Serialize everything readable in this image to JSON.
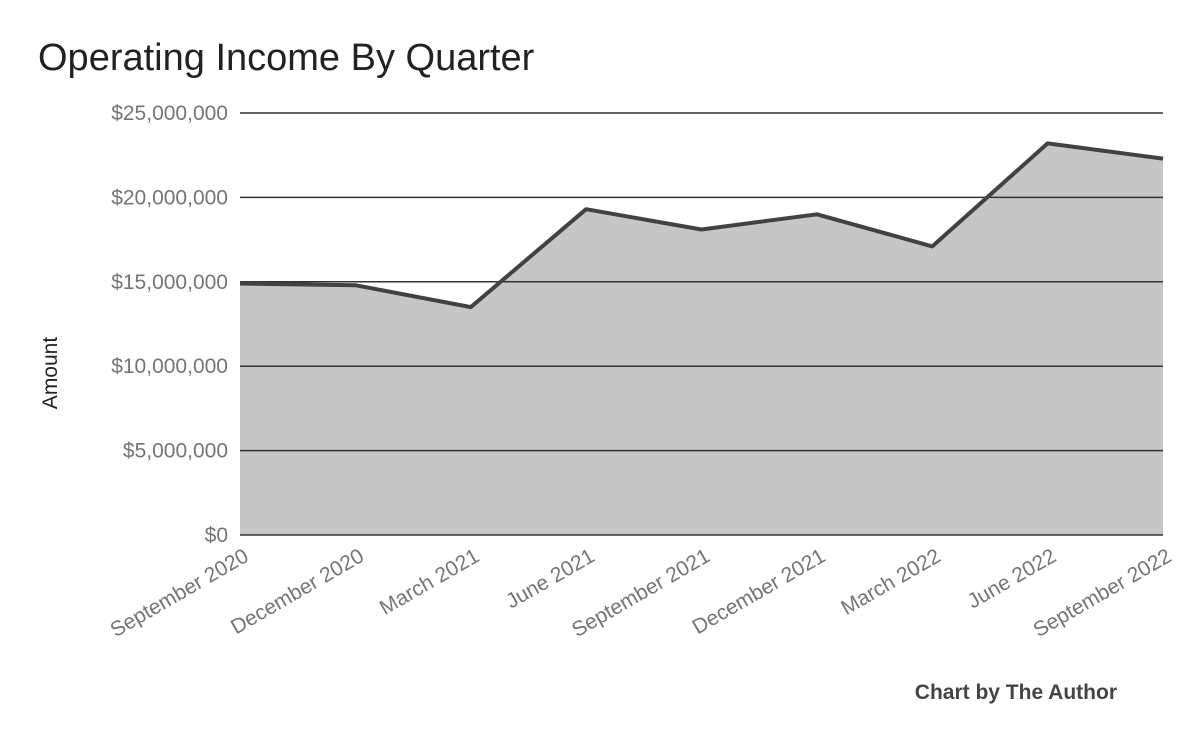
{
  "chart_data": {
    "type": "area",
    "title": "Operating Income By Quarter",
    "xlabel": "",
    "ylabel": "Amount",
    "categories": [
      "September 2020",
      "December 2020",
      "March 2021",
      "June 2021",
      "September 2021",
      "December 2021",
      "March 2022",
      "June 2022",
      "September 2022"
    ],
    "values": [
      14900000,
      14800000,
      13500000,
      19300000,
      18100000,
      19000000,
      17100000,
      23200000,
      22300000
    ],
    "ylim": [
      0,
      25000000
    ],
    "yticks": [
      0,
      5000000,
      10000000,
      15000000,
      20000000,
      25000000
    ],
    "ytick_labels": [
      "$0",
      "$5,000,000",
      "$10,000,000",
      "$15,000,000",
      "$20,000,000",
      "$25,000,000"
    ],
    "grid": true,
    "colors": {
      "fill": "#c6c6c6",
      "line": "#424242",
      "grid": "#333333"
    }
  },
  "footer": {
    "credit": "Chart by The Author"
  }
}
